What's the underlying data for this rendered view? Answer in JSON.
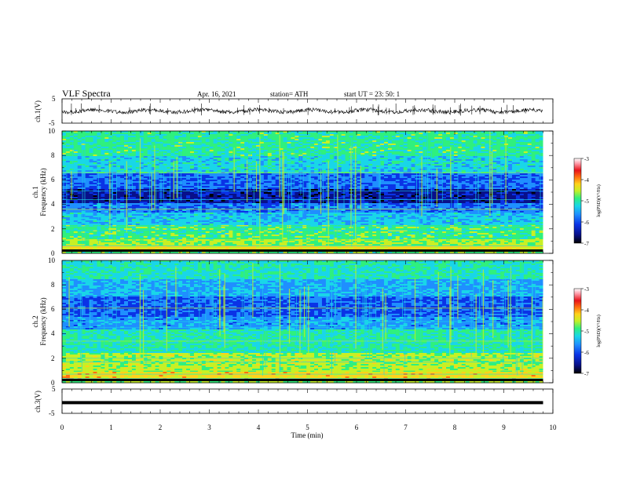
{
  "header": {
    "title": "VLF  Spectra",
    "date": "Apr. 16, 2021",
    "station": "station= ATH",
    "start_ut": "start  UT  =    23: 50: 1"
  },
  "chart_data": [
    {
      "type": "line",
      "panel": "ch1-waveform",
      "ylabel": "ch.1(V)",
      "ylim": [
        -5,
        5
      ],
      "y_ticks": [
        "5",
        "-5"
      ],
      "xlim": [
        0,
        10
      ],
      "trace_color": "#000000",
      "approx_level": 0,
      "grid": false
    },
    {
      "type": "heatmap",
      "panel": "ch1-spectrogram",
      "ylabel_line1": "ch.1",
      "ylabel_line2": "Frequency  (kHz)",
      "ylim": [
        0,
        10
      ],
      "y_ticks": [
        "0",
        "2",
        "4",
        "6",
        "8",
        "10"
      ],
      "xlim": [
        0,
        9.8
      ],
      "colorbar": {
        "label": "log(PSD)(V²/Hz)",
        "range": [
          -7,
          -3
        ],
        "ticks": [
          "-3",
          "-4",
          "-5",
          "-6",
          "-7"
        ]
      }
    },
    {
      "type": "heatmap",
      "panel": "ch2-spectrogram",
      "ylabel_line1": "ch.2",
      "ylabel_line2": "Frequency  (kHz)",
      "ylim": [
        0,
        10
      ],
      "y_ticks": [
        "0",
        "2",
        "4",
        "6",
        "8",
        "10"
      ],
      "xlim": [
        0,
        9.8
      ],
      "colorbar": {
        "label": "log(PSD)(V²/Hz)",
        "range": [
          -7,
          -3
        ],
        "ticks": [
          "-3",
          "-4",
          "-5",
          "-6",
          "-7"
        ]
      }
    },
    {
      "type": "line",
      "panel": "ch3-waveform",
      "ylabel": "ch.3(V)",
      "ylim": [
        -5,
        5
      ],
      "y_ticks": [
        "5",
        "-5"
      ],
      "xlim": [
        0,
        10
      ],
      "approx_level": -0.6,
      "trace_color": "#000000"
    }
  ],
  "x_axis": {
    "label": "Time  (min)",
    "ticks": [
      "0",
      "1",
      "2",
      "3",
      "4",
      "5",
      "6",
      "7",
      "8",
      "9",
      "10"
    ],
    "range": [
      0,
      10
    ]
  },
  "colors": {
    "colormap": [
      "#000000",
      "#08108a",
      "#0a33e6",
      "#1f8fff",
      "#19d6e8",
      "#2ff07e",
      "#c7f025",
      "#ffd21a",
      "#ff6f10",
      "#e8121a",
      "#ff9aa8",
      "#ffffff"
    ]
  }
}
